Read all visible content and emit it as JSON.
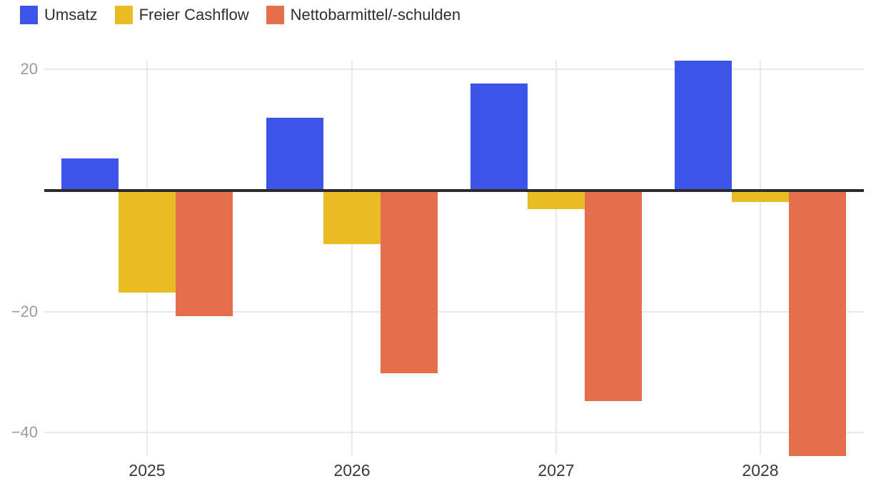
{
  "style": {
    "background": "#ffffff",
    "grid_color": "#e8e8e8",
    "zero_line_color": "#2b2b2b",
    "ytick_text_color": "#9b9b9b",
    "xtick_text_color": "#383838",
    "legend_text_color": "#2f2f2f"
  },
  "chart_data": {
    "type": "bar",
    "title": "",
    "xlabel": "",
    "ylabel": "",
    "categories": [
      "2025",
      "2026",
      "2027",
      "2028"
    ],
    "series": [
      {
        "name": "Umsatz",
        "color": "#3C54E8",
        "values": [
          5.3,
          12.0,
          17.7,
          21.4
        ]
      },
      {
        "name": "Freier Cashflow",
        "color": "#E9BC24",
        "values": [
          -16.9,
          -8.8,
          -3.1,
          -1.9
        ]
      },
      {
        "name": "Nettobarmittel/-schulden",
        "color": "#E56F4B",
        "values": [
          -20.8,
          -30.2,
          -34.8,
          -43.8
        ]
      }
    ],
    "yticks": [
      {
        "value": 20,
        "label": "20"
      },
      {
        "value": -20,
        "label": "−20"
      },
      {
        "value": -40,
        "label": "−40"
      }
    ],
    "ylim": [
      -44,
      22
    ],
    "baseline": 0,
    "grid": "horizontal-and-vertical",
    "legend_position": "top-left"
  }
}
